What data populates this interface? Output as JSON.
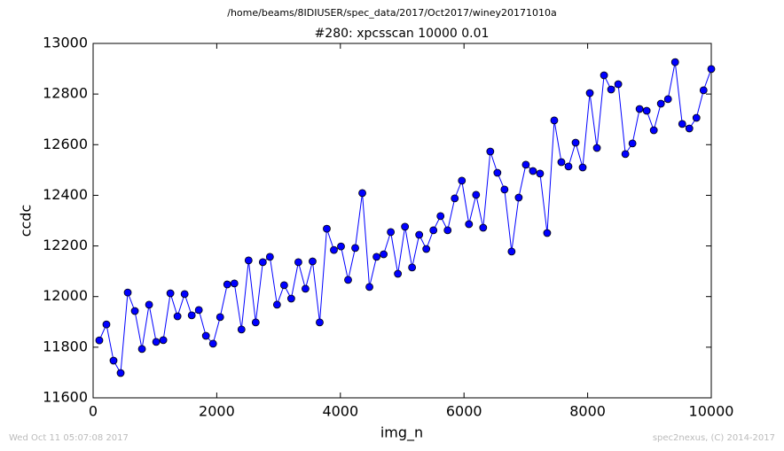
{
  "chart_data": {
    "type": "line",
    "suptitle": "/home/beams/8IDIUSER/spec_data/2017/Oct2017/winey20171010a",
    "title": "#280: xpcsscan 10000 0.01",
    "xlabel": "img_n",
    "ylabel": "ccdc",
    "footer_left": "Wed Oct 11 05:07:08 2017",
    "footer_right": "spec2nexus, (C) 2014-2017",
    "color": "#0000ff",
    "marker": "o",
    "x": [
      100,
      215,
      330,
      445,
      560,
      675,
      790,
      905,
      1020,
      1135,
      1250,
      1365,
      1480,
      1595,
      1710,
      1825,
      1940,
      2055,
      2170,
      2285,
      2400,
      2515,
      2630,
      2745,
      2860,
      2975,
      3090,
      3205,
      3320,
      3435,
      3550,
      3665,
      3780,
      3895,
      4010,
      4125,
      4240,
      4355,
      4470,
      4585,
      4700,
      4815,
      4930,
      5045,
      5160,
      5275,
      5390,
      5505,
      5620,
      5735,
      5850,
      5965,
      6080,
      6195,
      6310,
      6425,
      6540,
      6655,
      6770,
      6885,
      7000,
      7115,
      7230,
      7345,
      7460,
      7575,
      7690,
      7805,
      7920,
      8035,
      8150,
      8265,
      8380,
      8495,
      8610,
      8725,
      8840,
      8955,
      9070,
      9185,
      9300,
      9415,
      9530,
      9645,
      9760,
      9875,
      10000
    ],
    "values": [
      11827,
      11890,
      11747,
      11698,
      12016,
      11943,
      11793,
      11968,
      11821,
      11828,
      12013,
      11922,
      12010,
      11926,
      11947,
      11845,
      11814,
      11919,
      12048,
      12052,
      11870,
      12143,
      11898,
      12136,
      12157,
      11968,
      12045,
      11992,
      12136,
      12031,
      12139,
      11898,
      12268,
      12184,
      12198,
      12066,
      12192,
      12409,
      12038,
      12157,
      12167,
      12255,
      12090,
      12276,
      12115,
      12244,
      12188,
      12262,
      12318,
      12262,
      12388,
      12458,
      12286,
      12402,
      12272,
      12573,
      12489,
      12423,
      12178,
      12391,
      12521,
      12496,
      12486,
      12251,
      12696,
      12531,
      12514,
      12608,
      12510,
      12804,
      12587,
      12874,
      12818,
      12839,
      12563,
      12605,
      12741,
      12734,
      12657,
      12762,
      12780,
      12926,
      12682,
      12664,
      12706,
      12815,
      12899
    ],
    "xlim": [
      0,
      10000
    ],
    "xticks": [
      0,
      2000,
      4000,
      6000,
      8000,
      10000
    ],
    "ylim": [
      11600,
      13000
    ],
    "yticks": [
      11600,
      11800,
      12000,
      12200,
      12400,
      12600,
      12800,
      13000
    ]
  }
}
